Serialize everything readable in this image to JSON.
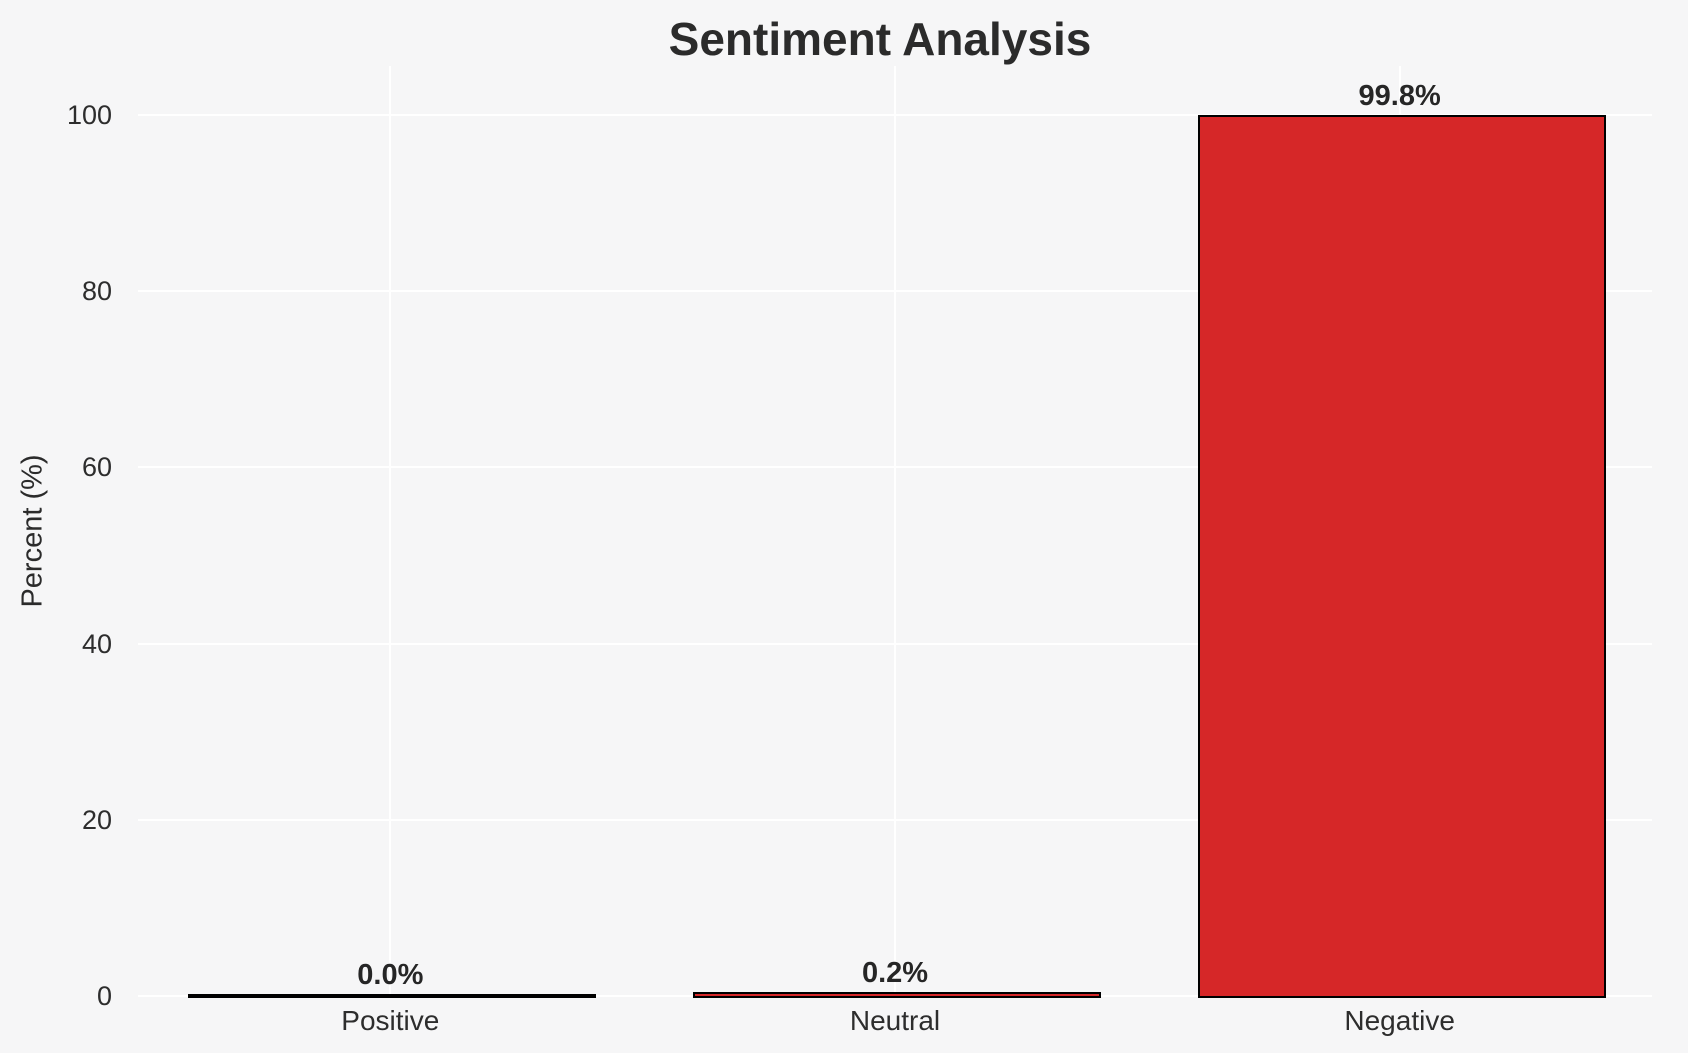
{
  "chart_data": {
    "type": "bar",
    "title": "Sentiment Analysis",
    "xlabel": "",
    "ylabel": "Percent (%)",
    "categories": [
      "Positive",
      "Neutral",
      "Negative"
    ],
    "values": [
      0.0,
      0.2,
      99.8
    ],
    "value_labels": [
      "0.0%",
      "0.2%",
      "99.8%"
    ],
    "yticks": [
      0,
      20,
      40,
      60,
      80,
      100
    ],
    "ytick_labels": [
      "0",
      "20",
      "40",
      "60",
      "80",
      "100"
    ],
    "ylim": [
      0,
      105.6
    ],
    "grid": true,
    "legend": false,
    "colors": {
      "bar_fill": "#d62728",
      "bar_edge": "#000000",
      "background": "#f6f6f7",
      "gridline": "#ffffff",
      "text": "#2b2b2b"
    }
  }
}
